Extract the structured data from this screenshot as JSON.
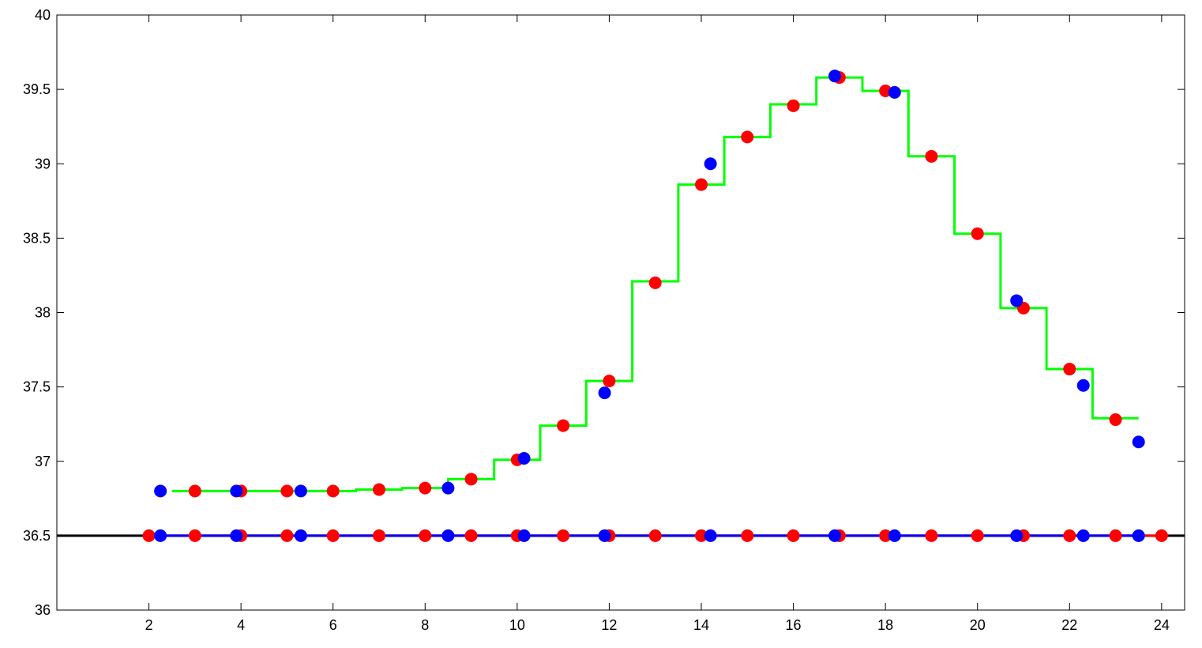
{
  "chart_data": {
    "type": "scatter",
    "title": "",
    "xlabel": "",
    "ylabel": "",
    "xlim": [
      0,
      24.5
    ],
    "ylim": [
      36,
      40
    ],
    "xticks": [
      2,
      4,
      6,
      8,
      10,
      12,
      14,
      16,
      18,
      20,
      22,
      24
    ],
    "yticks": [
      36,
      36.5,
      37,
      37.5,
      38,
      38.5,
      39,
      39.5,
      40
    ],
    "xtick_labels": [
      "2",
      "4",
      "6",
      "8",
      "10",
      "12",
      "14",
      "16",
      "18",
      "20",
      "22",
      "24"
    ],
    "ytick_labels": [
      "36",
      "36.5",
      "37",
      "37.5",
      "38",
      "38.5",
      "39",
      "39.5",
      "40"
    ],
    "grid": false,
    "legend": "none",
    "baseline": {
      "y": 36.5,
      "color": "#000000"
    },
    "series": [
      {
        "kind": "step",
        "color": "#00ff00",
        "x": [
          3,
          4,
          5,
          6,
          7,
          8,
          9,
          10,
          11,
          12,
          13,
          14,
          15,
          16,
          17,
          18,
          19,
          20,
          21,
          22,
          23
        ],
        "y": [
          36.8,
          36.8,
          36.8,
          36.8,
          36.81,
          36.82,
          36.88,
          37.01,
          37.24,
          37.54,
          38.21,
          38.86,
          39.18,
          39.4,
          39.58,
          39.49,
          39.05,
          38.53,
          38.03,
          37.62,
          37.29
        ]
      },
      {
        "kind": "points",
        "color": "#ff0000",
        "x": [
          3,
          4,
          5,
          6,
          7,
          8,
          9,
          10,
          11,
          12,
          13,
          14,
          15,
          16,
          17,
          18,
          19,
          20,
          21,
          22,
          23
        ],
        "y": [
          36.8,
          36.8,
          36.8,
          36.8,
          36.81,
          36.82,
          36.88,
          37.01,
          37.24,
          37.54,
          38.2,
          38.86,
          39.18,
          39.39,
          39.58,
          39.49,
          39.05,
          38.53,
          38.03,
          37.62,
          37.28
        ]
      },
      {
        "kind": "points",
        "color": "#0000ff",
        "x": [
          2.25,
          3.9,
          5.3,
          8.5,
          10.15,
          11.9,
          14.2,
          16.9,
          18.2,
          20.85,
          22.3,
          23.5
        ],
        "y": [
          36.8,
          36.8,
          36.8,
          36.82,
          37.02,
          37.46,
          39.0,
          39.59,
          39.48,
          38.08,
          37.51,
          37.13
        ]
      },
      {
        "kind": "line-points",
        "color": "#ff0000",
        "x": [
          2,
          3,
          4,
          5,
          6,
          7,
          8,
          9,
          10,
          11,
          12,
          13,
          14,
          15,
          16,
          17,
          18,
          19,
          20,
          21,
          22,
          23,
          24
        ],
        "y": [
          36.5,
          36.5,
          36.5,
          36.5,
          36.5,
          36.5,
          36.5,
          36.5,
          36.5,
          36.5,
          36.5,
          36.5,
          36.5,
          36.5,
          36.5,
          36.5,
          36.5,
          36.5,
          36.5,
          36.5,
          36.5,
          36.5,
          36.5
        ]
      },
      {
        "kind": "line-points",
        "color": "#0000ff",
        "x": [
          2.25,
          3.9,
          5.3,
          8.5,
          10.15,
          11.9,
          14.2,
          16.9,
          18.2,
          20.85,
          22.3,
          23.5
        ],
        "y": [
          36.5,
          36.5,
          36.5,
          36.5,
          36.5,
          36.5,
          36.5,
          36.5,
          36.5,
          36.5,
          36.5,
          36.5
        ]
      }
    ]
  }
}
